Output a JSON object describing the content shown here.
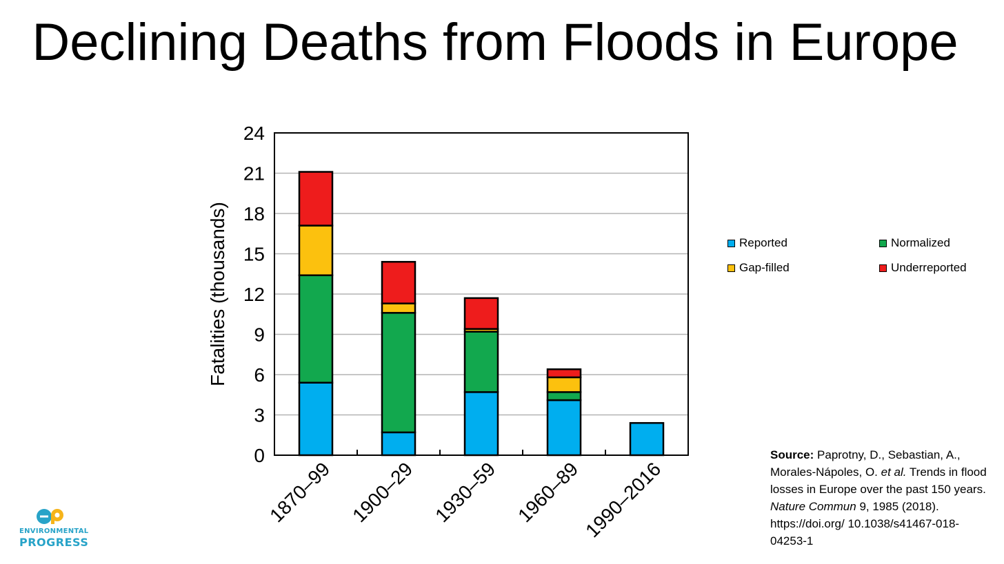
{
  "slide": {
    "title": "Declining Deaths from Floods in Europe"
  },
  "chart_data": {
    "type": "bar",
    "stacked": true,
    "title": "",
    "xlabel": "",
    "ylabel": "Fatalities (thousands)",
    "ylim": [
      0,
      24
    ],
    "yticks": [
      0,
      3,
      6,
      9,
      12,
      15,
      18,
      21,
      24
    ],
    "grid": true,
    "legend_position": "right",
    "categories": [
      "1870–99",
      "1900–29",
      "1930–59",
      "1960–89",
      "1990–2016"
    ],
    "series": [
      {
        "name": "Reported",
        "color": "#00aeef",
        "values": [
          5.4,
          1.7,
          4.7,
          4.1,
          2.4
        ]
      },
      {
        "name": "Normalized",
        "color": "#12a84e",
        "values": [
          8.0,
          8.9,
          4.5,
          0.6,
          0.0
        ]
      },
      {
        "name": "Gap-filled",
        "color": "#fcc10e",
        "values": [
          3.7,
          0.7,
          0.2,
          1.1,
          0.0
        ]
      },
      {
        "name": "Underreported",
        "color": "#ee1c1c",
        "values": [
          4.0,
          3.1,
          2.3,
          0.6,
          0.0
        ]
      }
    ]
  },
  "legend": {
    "items": [
      {
        "label": "Reported",
        "color": "#00aeef"
      },
      {
        "label": "Normalized",
        "color": "#12a84e"
      },
      {
        "label": "Gap-filled",
        "color": "#fcc10e"
      },
      {
        "label": "Underreported",
        "color": "#ee1c1c"
      }
    ]
  },
  "source": {
    "label": "Source:",
    "authors": " Paprotny, D., Sebastian, A., Morales-Nápoles, O. ",
    "etal": "et al.",
    "title": " Trends in flood losses in Europe over the past 150 years. ",
    "journal": "Nature Commun",
    "citation": " 9, 1985 (2018). https://doi.org/ 10.1038/s41467-018-04253-1"
  },
  "logo": {
    "line1": "ENVIRONMENTAL",
    "line2": "PROGRESS",
    "color": "#27a3c8",
    "icon": "ep-logo-icon"
  }
}
